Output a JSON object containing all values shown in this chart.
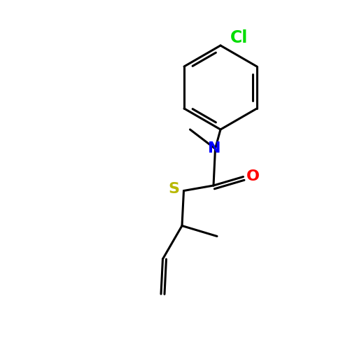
{
  "bg_color": "#ffffff",
  "bond_color": "#000000",
  "bond_width": 2.2,
  "atom_colors": {
    "N": "#0000ff",
    "O": "#ff0000",
    "S": "#b8b800",
    "Cl": "#00dd00",
    "C": "#000000"
  },
  "font_size_atom": 16,
  "font_size_cl": 17,
  "fig_size": [
    5.0,
    5.0
  ],
  "dpi": 100
}
